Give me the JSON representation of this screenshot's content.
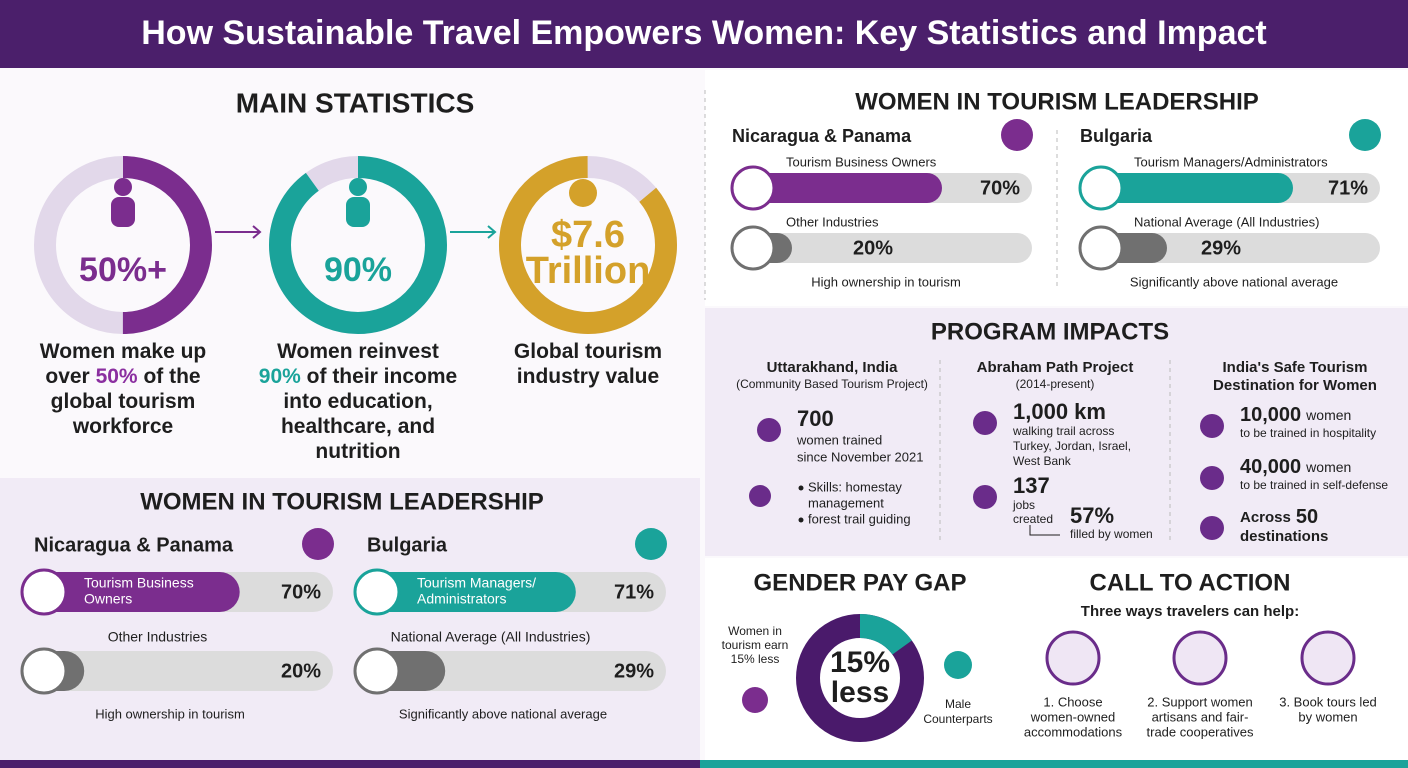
{
  "header": {
    "title": "How Sustainable Travel Empowers Women: Key Statistics and Impact"
  },
  "main_statistics": {
    "title": "MAIN STATISTICS",
    "items": [
      {
        "value": 50,
        "label": "50%+",
        "color": "#7b2d8e",
        "caption": [
          [
            "Women make up"
          ],
          [
            "over ",
            {
              "text": "50%",
              "color": "#8b2fa0"
            },
            " of the"
          ],
          [
            "global tourism"
          ],
          [
            "workforce"
          ]
        ]
      },
      {
        "value": 90,
        "label": "90%",
        "color": "#1aa39a",
        "caption": [
          [
            "Women reinvest"
          ],
          [
            {
              "text": "90%",
              "color": "#1aa39a"
            },
            " of their income"
          ],
          [
            "into education,"
          ],
          [
            "healthcare, and"
          ],
          [
            "nutrition"
          ]
        ]
      },
      {
        "label": [
          "$7.6",
          "Trillion"
        ],
        "color": "#d4a12a",
        "caption": [
          [
            "Global tourism"
          ],
          [
            "industry value"
          ]
        ]
      }
    ]
  },
  "leadership_left": {
    "title": "WOMEN IN TOURISM LEADERSHIP",
    "regions": [
      {
        "name": "Nicaragua & Panama",
        "bars": [
          {
            "label": [
              "Tourism Business",
              "Owners"
            ],
            "value": 70,
            "value_label": "70%",
            "color": "#7b2d8e"
          },
          {
            "label": [
              "Other Industries"
            ],
            "value": 20,
            "value_label": "20%",
            "color": "#707070"
          }
        ],
        "note": "High ownership in tourism"
      },
      {
        "name": "Bulgaria",
        "bars": [
          {
            "label": [
              "Tourism Managers/",
              "Administrators"
            ],
            "value": 71,
            "value_label": "71%",
            "color": "#1aa39a"
          },
          {
            "label": [
              "National Average (All Industries)"
            ],
            "value": 29,
            "value_label": "29%",
            "color": "#707070"
          }
        ],
        "note": "Significantly above national average"
      }
    ]
  },
  "leadership_right": {
    "title": "WOMEN IN TOURISM LEADERSHIP",
    "regions": [
      {
        "name": "Nicaragua & Panama",
        "bars": [
          {
            "label": [
              "Tourism Business Owners"
            ],
            "value": 70,
            "value_label": "70%",
            "color": "#7b2d8e"
          },
          {
            "label": [
              "Other Industries"
            ],
            "value": 20,
            "value_label": "20%",
            "color": "#707070"
          }
        ],
        "note": "High ownership in tourism"
      },
      {
        "name": "Bulgaria",
        "bars": [
          {
            "label": [
              "Tourism Managers/Administrators"
            ],
            "value": 71,
            "value_label": "71%",
            "color": "#1aa39a"
          },
          {
            "label": [
              "National Average (All Industries)"
            ],
            "value": 29,
            "value_label": "29%",
            "color": "#707070"
          }
        ],
        "note": "Significantly above national average"
      }
    ]
  },
  "program_impacts": {
    "title": "PROGRAM IMPACTS",
    "projects": [
      {
        "title": [
          "Uttarakhand, India"
        ],
        "subtitle": "(Community Based Tourism Project)",
        "stats": [
          {
            "number": "700",
            "text": [
              "women trained",
              "since November 2021"
            ]
          }
        ],
        "skills": [
          [
            "Skills: homestay",
            "management"
          ],
          [
            "forest trail guiding"
          ]
        ]
      },
      {
        "title": [
          "Abraham Path Project"
        ],
        "subtitle": "(2014-present)",
        "stats": [
          {
            "number": "1,000 km",
            "text": [
              "walking trail across",
              "Turkey, Jordan, Israel,",
              "West Bank"
            ]
          },
          {
            "number": "137",
            "text": [
              "jobs",
              "created"
            ]
          },
          {
            "number": "57%",
            "text": [
              "filled by women"
            ]
          }
        ]
      },
      {
        "title": [
          "India's Safe Tourism",
          "Destination for Women"
        ],
        "stats": [
          {
            "number": "10,000",
            "unit": "women",
            "text": [
              "to be trained in hospitality"
            ]
          },
          {
            "number": "40,000",
            "unit": "women",
            "text": [
              "to be trained in self-defense"
            ]
          },
          {
            "prefix": "Across",
            "number": "50",
            "text": [
              "destinations"
            ]
          }
        ]
      }
    ]
  },
  "gender_pay_gap": {
    "title": "GENDER PAY GAP",
    "note": [
      "Women in",
      "tourism earn",
      "15% less"
    ],
    "value": 15,
    "label": [
      "15%",
      "less"
    ],
    "color": "#1aa39a",
    "rest_color": "#4a1a6b",
    "comparison": [
      "Male",
      "Counterparts"
    ]
  },
  "call_to_action": {
    "title": "CALL TO ACTION",
    "subtitle": "Three ways travelers can help:",
    "items": [
      [
        "1. Choose",
        "women-owned",
        "accommodations"
      ],
      [
        "2. Support women",
        "artisans and fair-",
        "trade cooperatives"
      ],
      [
        "3. Book tours led",
        "by women"
      ]
    ]
  }
}
